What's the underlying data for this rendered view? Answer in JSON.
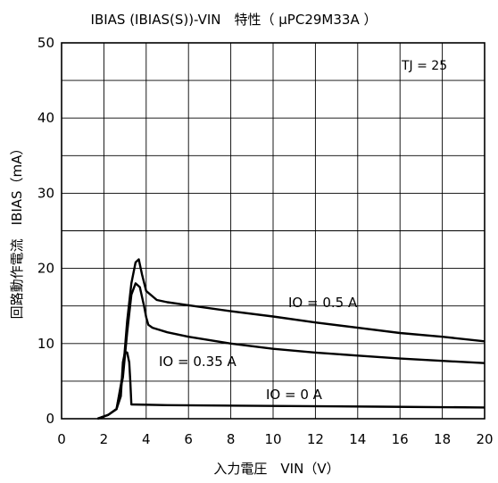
{
  "chart_data": {
    "type": "line",
    "title": "IBIAS (IBIAS(S))-VIN　特性（ μPC29M33A ）",
    "xlabel": "入力電圧　VIN（V）",
    "ylabel": "回路動作電流　IBIAS（mA）",
    "xlim": [
      0,
      20
    ],
    "ylim": [
      0,
      50
    ],
    "xticks": [
      0,
      2,
      4,
      6,
      8,
      10,
      12,
      14,
      16,
      18,
      20
    ],
    "yticks": [
      0,
      10,
      20,
      30,
      40,
      50
    ],
    "grid": true,
    "legend": "none",
    "condition": "TJ = 25",
    "series": [
      {
        "name": "IO = 0.5 A",
        "x": [
          1.7,
          2.2,
          2.6,
          2.9,
          3.1,
          3.3,
          3.5,
          3.65,
          3.8,
          4.0,
          4.5,
          5,
          6,
          8,
          10,
          12,
          14,
          16,
          18,
          20
        ],
        "y": [
          0,
          0.5,
          1.3,
          6,
          13,
          18,
          20.8,
          21.2,
          19.2,
          17,
          15.8,
          15.5,
          15.1,
          14.3,
          13.6,
          12.8,
          12.1,
          11.4,
          10.9,
          10.3
        ]
      },
      {
        "name": "IO = 0.35 A",
        "x": [
          1.7,
          2.2,
          2.6,
          2.9,
          3.1,
          3.3,
          3.5,
          3.7,
          3.9,
          4.0,
          4.1,
          4.3,
          5,
          6,
          8,
          10,
          12,
          14,
          16,
          18,
          20
        ],
        "y": [
          0,
          0.5,
          1.3,
          5.5,
          11.5,
          16.5,
          18,
          17.5,
          15,
          13.5,
          12.5,
          12.1,
          11.5,
          10.9,
          10,
          9.3,
          8.8,
          8.4,
          8,
          7.7,
          7.4
        ]
      },
      {
        "name": "IO = 0 A",
        "x": [
          1.7,
          2.2,
          2.6,
          2.8,
          2.9,
          3.0,
          3.1,
          3.2,
          3.25,
          3.3,
          5,
          10,
          15,
          20
        ],
        "y": [
          0,
          0.5,
          1.3,
          3,
          7.5,
          8.9,
          8.8,
          7.5,
          5,
          1.9,
          1.8,
          1.7,
          1.6,
          1.5
        ]
      }
    ]
  }
}
